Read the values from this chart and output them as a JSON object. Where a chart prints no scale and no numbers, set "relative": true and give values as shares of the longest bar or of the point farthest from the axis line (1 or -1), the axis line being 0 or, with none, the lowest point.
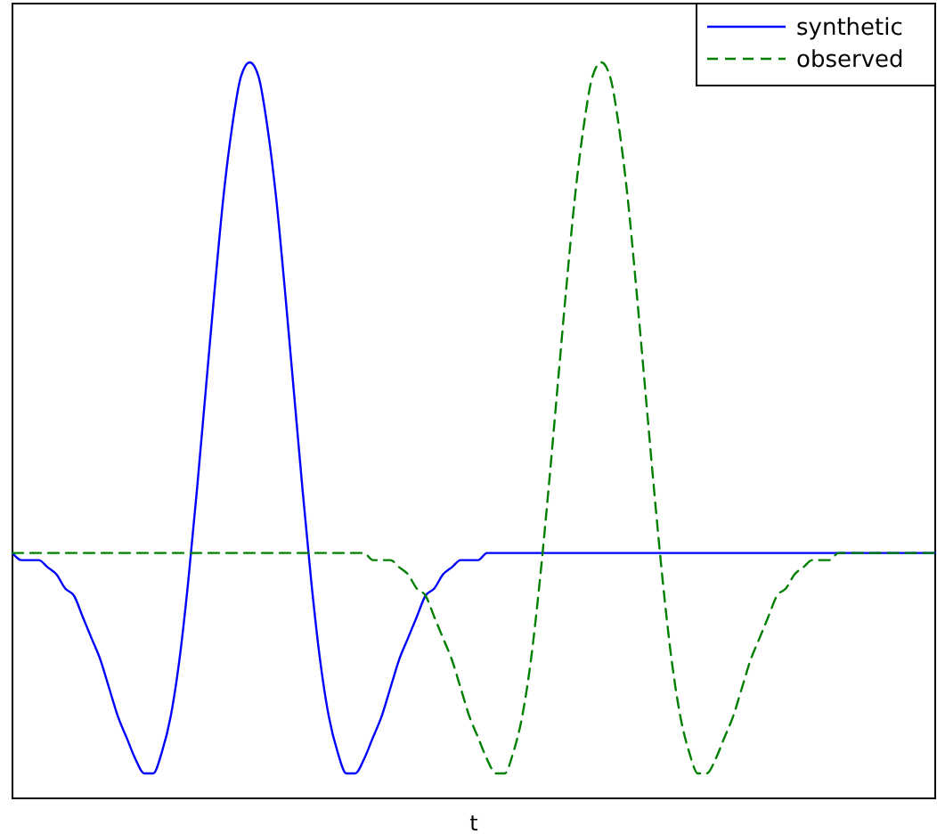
{
  "chart_data": {
    "type": "line",
    "relative": true,
    "xlabel": "t",
    "legend": "top right",
    "categories": [
      null,
      null,
      null,
      null,
      null,
      null,
      null,
      null,
      null,
      null,
      null,
      null,
      null,
      null,
      null,
      null,
      null,
      null,
      null,
      null,
      null,
      null,
      null,
      null,
      null,
      null,
      null,
      null,
      null,
      null,
      null,
      null,
      null,
      null,
      null,
      null,
      null,
      null,
      null,
      null,
      null,
      null,
      null,
      null,
      null,
      null,
      null,
      null,
      null,
      null,
      null,
      null,
      null,
      null,
      null,
      null,
      null,
      null,
      null,
      null,
      null,
      null,
      null,
      null,
      null,
      null,
      null,
      null,
      null,
      null,
      null,
      null,
      null,
      null,
      null,
      null,
      null,
      null,
      null,
      null,
      null,
      null,
      null,
      null,
      null,
      null,
      null,
      null,
      null,
      null,
      null,
      null,
      null,
      null,
      null,
      null,
      null,
      null,
      null,
      null,
      null,
      null,
      null,
      null,
      null,
      null
    ],
    "series": [
      {
        "name": "synthetic",
        "color": "#0000ff",
        "line_style": "solid",
        "values": [
          0.31,
          0.3,
          0.3,
          0.3,
          0.29,
          0.28,
          0.26,
          0.25,
          0.22,
          0.19,
          0.16,
          0.12,
          0.08,
          0.05,
          0.02,
          0,
          0,
          0.03,
          0.08,
          0.16,
          0.27,
          0.4,
          0.54,
          0.68,
          0.81,
          0.91,
          0.98,
          1,
          0.98,
          0.91,
          0.81,
          0.68,
          0.54,
          0.4,
          0.27,
          0.16,
          0.08,
          0.03,
          0,
          0,
          0.02,
          0.05,
          0.08,
          0.12,
          0.16,
          0.19,
          0.22,
          0.25,
          0.26,
          0.28,
          0.29,
          0.3,
          0.3,
          0.3,
          0.31,
          0.31,
          0.31,
          0.31,
          0.31,
          0.31,
          0.31,
          0.31,
          0.31,
          0.31,
          0.31,
          0.31,
          0.31,
          0.31,
          0.31,
          0.31,
          0.31,
          0.31,
          0.31,
          0.31,
          0.31,
          0.31,
          0.31,
          0.31,
          0.31,
          0.31,
          0.31,
          0.31,
          0.31,
          0.31,
          0.31,
          0.31,
          0.31,
          0.31,
          0.31,
          0.31,
          0.31,
          0.31,
          0.31,
          0.31,
          0.31,
          0.31,
          0.31,
          0.31,
          0.31,
          0.31,
          0.31,
          0.31,
          0.31,
          0.31,
          0.31,
          0.31
        ]
      },
      {
        "name": "observed",
        "color": "#007f00",
        "line_style": "dashed",
        "values": [
          0.31,
          0.31,
          0.31,
          0.31,
          0.31,
          0.31,
          0.31,
          0.31,
          0.31,
          0.31,
          0.31,
          0.31,
          0.31,
          0.31,
          0.31,
          0.31,
          0.31,
          0.31,
          0.31,
          0.31,
          0.31,
          0.31,
          0.31,
          0.31,
          0.31,
          0.31,
          0.31,
          0.31,
          0.31,
          0.31,
          0.31,
          0.31,
          0.31,
          0.31,
          0.31,
          0.31,
          0.31,
          0.31,
          0.31,
          0.31,
          0.31,
          0.3,
          0.3,
          0.3,
          0.29,
          0.28,
          0.26,
          0.25,
          0.22,
          0.19,
          0.16,
          0.12,
          0.08,
          0.05,
          0.02,
          0,
          0,
          0.03,
          0.08,
          0.16,
          0.27,
          0.4,
          0.54,
          0.68,
          0.81,
          0.91,
          0.98,
          1,
          0.98,
          0.91,
          0.81,
          0.68,
          0.54,
          0.4,
          0.27,
          0.16,
          0.08,
          0.03,
          0,
          0,
          0.02,
          0.05,
          0.08,
          0.12,
          0.16,
          0.19,
          0.22,
          0.25,
          0.26,
          0.28,
          0.29,
          0.3,
          0.3,
          0.3,
          0.31,
          0.31,
          0.31,
          0.31,
          0.31,
          0.31,
          0.31,
          0.31,
          0.31,
          0.31,
          0.31,
          0.31
        ]
      }
    ]
  }
}
